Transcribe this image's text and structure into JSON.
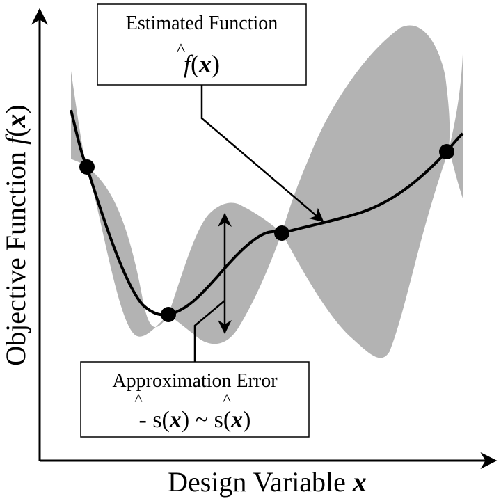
{
  "axes": {
    "x_label_text": "Design Variable ",
    "x_label_var": "x",
    "y_label_text": "Objective Function ",
    "y_label_func": "f",
    "y_label_paren_open": "(",
    "y_label_var": "x",
    "y_label_paren_close": ")"
  },
  "callouts": {
    "estimated": {
      "title": "Estimated Function",
      "formula_func": "f",
      "formula_hat": "^",
      "formula_var": "x"
    },
    "error": {
      "title": "Approximation Error",
      "minus": "-",
      "s1": "s",
      "s2": "s",
      "var1": "x",
      "var2": "x",
      "tilde": "~",
      "hat": "^"
    }
  },
  "colors": {
    "band": "#b3b3b3",
    "line": "#000000",
    "background": "#ffffff"
  }
}
